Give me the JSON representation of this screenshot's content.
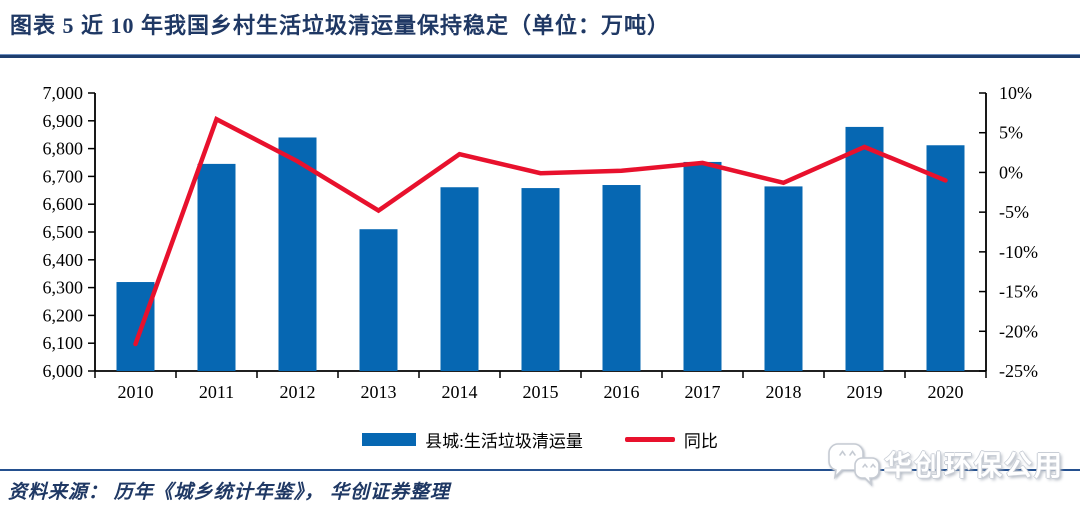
{
  "figure": {
    "title": "图表 5  近 10 年我国乡村生活垃圾清运量保持稳定（单位：万吨）",
    "source": "资料来源： 历年《城乡统计年鉴》， 华创证券整理"
  },
  "watermark": {
    "icon": "wechat-icon",
    "label": "华创环保公用"
  },
  "colors": {
    "title_navy": "#1F3864",
    "rule_blue": "#24508F",
    "bar_blue": "#0667B2",
    "line_red": "#E8112D",
    "axis_black": "#000000"
  },
  "chart_data": {
    "type": "bar+line",
    "title": "近 10 年我国乡村生活垃圾清运量保持稳定",
    "unit": "万吨",
    "categories": [
      "2010",
      "2011",
      "2012",
      "2013",
      "2014",
      "2015",
      "2016",
      "2017",
      "2018",
      "2019",
      "2020"
    ],
    "series": [
      {
        "name": "县城:生活垃圾清运量",
        "type": "bar",
        "axis": "left",
        "color": "#0667B2",
        "values": [
          6320,
          6745,
          6840,
          6510,
          6661,
          6658,
          6669,
          6752,
          6664,
          6878,
          6812
        ]
      },
      {
        "name": "同比",
        "type": "line",
        "axis": "right",
        "color": "#E8112D",
        "unit": "%",
        "values": [
          -21.6,
          6.7,
          1.4,
          -4.8,
          2.3,
          -0.1,
          0.2,
          1.2,
          -1.3,
          3.2,
          -1.0
        ]
      }
    ],
    "left_axis": {
      "min": 6000,
      "max": 7000,
      "step": 100,
      "labels": [
        "7,000",
        "6,900",
        "6,800",
        "6,700",
        "6,600",
        "6,500",
        "6,400",
        "6,300",
        "6,200",
        "6,100",
        "6,000"
      ]
    },
    "right_axis": {
      "min": -25,
      "max": 10,
      "step": 5,
      "labels": [
        "10%",
        "5%",
        "0%",
        "-5%",
        "-10%",
        "-15%",
        "-20%",
        "-25%"
      ]
    },
    "grid": "off",
    "legend_position": "bottom-center"
  }
}
